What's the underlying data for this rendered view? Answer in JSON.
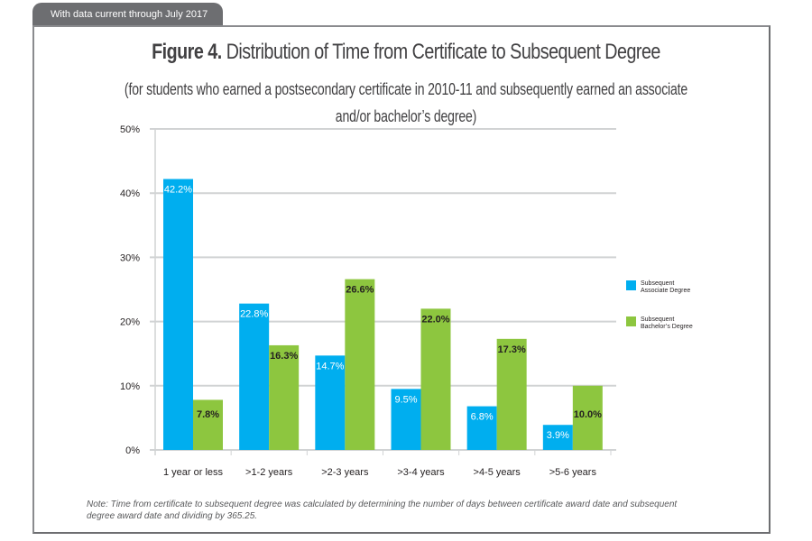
{
  "header": {
    "tab_text": "With data current through July 2017"
  },
  "figure": {
    "label": "Figure 4.",
    "title": "Distribution of Time from Certificate to Subsequent Degree",
    "subtitle_line1": "(for students who earned a postsecondary certificate in 2010-11 and subsequently earned an associate",
    "subtitle_line2": "and/or bachelor’s degree)",
    "note_line1": "Note: Time from certificate to subsequent degree was calculated by determining the number of days between certificate award date and subsequent",
    "note_line2": "degree award date and dividing by 365.25."
  },
  "chart_data": {
    "type": "bar",
    "title": "Figure 4. Distribution of Time from Certificate to Subsequent Degree",
    "subtitle": "(for students who earned a postsecondary certificate in 2010-11 and subsequently earned an associate and/or bachelor’s degree)",
    "xlabel": "",
    "ylabel": "",
    "ylim": [
      0,
      50
    ],
    "yticks": [
      0,
      10,
      20,
      30,
      40,
      50
    ],
    "ytick_labels": [
      "0%",
      "10%",
      "20%",
      "30%",
      "40%",
      "50%"
    ],
    "grid": true,
    "legend_position": "right",
    "categories": [
      "1 year or less",
      ">1-2 years",
      ">2-3 years",
      ">3-4 years",
      ">4-5 years",
      ">5-6 years"
    ],
    "series": [
      {
        "name": "Subsequent Associate Degree",
        "legend_line1": "Subsequent",
        "legend_line2": "Associate Degree",
        "color": "#00aeef",
        "label_color": "#ffffff",
        "values": [
          42.2,
          22.8,
          14.7,
          9.5,
          6.8,
          3.9
        ],
        "labels": [
          "42.2%",
          "22.8%",
          "14.7%",
          "9.5%",
          "6.8%",
          "3.9%"
        ]
      },
      {
        "name": "Subsequent Bachelor’s Degree",
        "legend_line1": "Subsequent",
        "legend_line2": "Bachelor’s Degree",
        "color": "#8dc63f",
        "label_color": "#231f20",
        "values": [
          7.8,
          16.3,
          26.6,
          22.0,
          17.3,
          10.0
        ],
        "labels": [
          "7.8%",
          "16.3%",
          "26.6%",
          "22.0%",
          "17.3%",
          "10.0%"
        ]
      }
    ]
  }
}
